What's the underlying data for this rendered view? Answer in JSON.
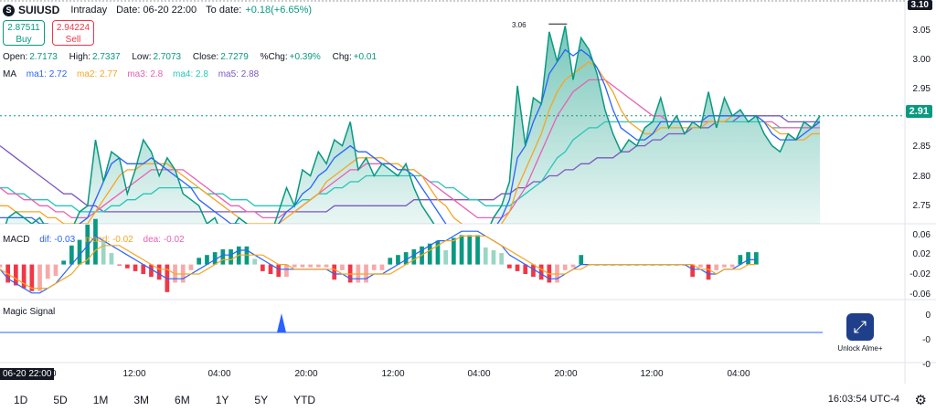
{
  "header": {
    "symbol": "SUIUSD",
    "interval": "Intraday",
    "date": "Date: 06-20 22:00",
    "to_date_label": "To date:",
    "to_date_value": "+0.18(+6.65%)"
  },
  "trade": {
    "buy_price": "2.87511",
    "buy_label": "Buy",
    "sell_price": "2.94224",
    "sell_label": "Sell"
  },
  "ohlc": {
    "open_label": "Open:",
    "open": "2.7173",
    "high_label": "High:",
    "high": "2.7337",
    "low_label": "Low:",
    "low": "2.7073",
    "close_label": "Close:",
    "close": "2.7279",
    "pchg_label": "%Chg:",
    "pchg": "+0.39%",
    "chg_label": "Chg:",
    "chg": "+0.01"
  },
  "ma_legend": {
    "title": "MA",
    "ma1": "ma1: 2.72",
    "ma2": "ma2: 2.77",
    "ma3": "ma3: 2.8",
    "ma4": "ma4: 2.8",
    "ma5": "ma5: 2.88"
  },
  "macd_legend": {
    "title": "MACD",
    "dif": "dif: -0.03",
    "macd": "macd: -0.02",
    "dea": "dea: -0.02"
  },
  "magic": {
    "title": "Magic Signal",
    "unlock_text": "Unlock Alme+"
  },
  "price_axis": {
    "labels": [
      "3.10",
      "3.05",
      "3.00",
      "2.95",
      "2.90",
      "2.85",
      "2.80",
      "2.75"
    ],
    "current": "2.91",
    "peak": "3.06"
  },
  "macd_axis": {
    "labels": [
      "0.06",
      "0.02",
      "-0.02",
      "-0.06"
    ]
  },
  "magic_axis": {
    "labels": [
      "0",
      "-0",
      "-0"
    ]
  },
  "time_axis": {
    "badge": "06-20 22:00",
    "labels": [
      "00",
      "12:00",
      "04:00",
      "20:00",
      "12:00",
      "04:00",
      "20:00",
      "12:00",
      "04:00"
    ]
  },
  "ranges": [
    "1D",
    "5D",
    "1M",
    "3M",
    "6M",
    "1Y",
    "5Y",
    "YTD"
  ],
  "clock": "16:03:54 UTC-4",
  "colors": {
    "up": "#089981",
    "down": "#f23645",
    "ma1": "#2962ff",
    "ma2": "#f5a623",
    "ma3": "#e860b5",
    "ma4": "#26c6b8",
    "ma5": "#7e57c2",
    "area": "#089981"
  },
  "chart_data": {
    "type": "line",
    "price": {
      "ylim": [
        2.73,
        3.1
      ],
      "close": [
        2.7,
        2.74,
        2.75,
        2.74,
        2.73,
        2.74,
        2.72,
        2.71,
        2.7,
        2.72,
        2.75,
        2.76,
        2.87,
        2.8,
        2.85,
        2.84,
        2.78,
        2.82,
        2.87,
        2.85,
        2.81,
        2.84,
        2.82,
        2.78,
        2.77,
        2.76,
        2.73,
        2.74,
        2.71,
        2.72,
        2.74,
        2.73,
        2.72,
        2.7,
        2.71,
        2.75,
        2.79,
        2.76,
        2.82,
        2.81,
        2.85,
        2.83,
        2.87,
        2.86,
        2.9,
        2.82,
        2.84,
        2.81,
        2.83,
        2.82,
        2.81,
        2.83,
        2.79,
        2.76,
        2.74,
        2.72,
        2.71,
        2.7,
        2.69,
        2.7,
        2.72,
        2.71,
        2.74,
        2.76,
        2.8,
        2.96,
        2.86,
        2.94,
        2.93,
        3.05,
        3.0,
        3.06,
        2.97,
        3.04,
        3.02,
        2.98,
        2.92,
        2.88,
        2.85,
        2.87,
        2.86,
        2.89,
        2.9,
        2.94,
        2.89,
        2.91,
        2.88,
        2.9,
        2.89,
        2.95,
        2.89,
        2.94,
        2.91,
        2.92,
        2.9,
        2.91,
        2.88,
        2.86,
        2.85,
        2.88,
        2.87,
        2.9,
        2.89,
        2.91
      ],
      "ma1": [
        2.74,
        2.74,
        2.74,
        2.74,
        2.74,
        2.73,
        2.73,
        2.72,
        2.72,
        2.72,
        2.73,
        2.74,
        2.77,
        2.8,
        2.83,
        2.84,
        2.83,
        2.83,
        2.83,
        2.84,
        2.83,
        2.82,
        2.81,
        2.8,
        2.79,
        2.77,
        2.76,
        2.75,
        2.74,
        2.73,
        2.73,
        2.72,
        2.72,
        2.72,
        2.72,
        2.73,
        2.75,
        2.76,
        2.78,
        2.79,
        2.81,
        2.82,
        2.84,
        2.85,
        2.86,
        2.85,
        2.85,
        2.84,
        2.83,
        2.83,
        2.82,
        2.82,
        2.81,
        2.79,
        2.77,
        2.75,
        2.73,
        2.72,
        2.71,
        2.7,
        2.71,
        2.71,
        2.72,
        2.74,
        2.77,
        2.84,
        2.86,
        2.9,
        2.93,
        2.98,
        3.0,
        3.02,
        3.01,
        3.02,
        3.01,
        2.99,
        2.96,
        2.92,
        2.89,
        2.88,
        2.87,
        2.87,
        2.88,
        2.9,
        2.9,
        2.9,
        2.9,
        2.9,
        2.9,
        2.91,
        2.91,
        2.91,
        2.91,
        2.91,
        2.91,
        2.91,
        2.9,
        2.88,
        2.87,
        2.87,
        2.87,
        2.88,
        2.89,
        2.9
      ],
      "ma2": [
        2.76,
        2.76,
        2.75,
        2.75,
        2.75,
        2.75,
        2.74,
        2.74,
        2.73,
        2.73,
        2.73,
        2.73,
        2.75,
        2.77,
        2.79,
        2.81,
        2.82,
        2.82,
        2.83,
        2.83,
        2.83,
        2.83,
        2.82,
        2.81,
        2.8,
        2.79,
        2.78,
        2.77,
        2.76,
        2.75,
        2.74,
        2.73,
        2.73,
        2.73,
        2.73,
        2.73,
        2.74,
        2.75,
        2.76,
        2.77,
        2.78,
        2.8,
        2.81,
        2.82,
        2.83,
        2.84,
        2.84,
        2.84,
        2.84,
        2.83,
        2.83,
        2.82,
        2.82,
        2.81,
        2.79,
        2.77,
        2.76,
        2.74,
        2.73,
        2.72,
        2.72,
        2.72,
        2.72,
        2.73,
        2.75,
        2.79,
        2.82,
        2.85,
        2.88,
        2.92,
        2.95,
        2.97,
        2.98,
        2.99,
        3.0,
        2.99,
        2.97,
        2.95,
        2.92,
        2.9,
        2.89,
        2.88,
        2.88,
        2.89,
        2.89,
        2.89,
        2.89,
        2.89,
        2.89,
        2.9,
        2.9,
        2.9,
        2.91,
        2.91,
        2.91,
        2.91,
        2.9,
        2.89,
        2.88,
        2.88,
        2.87,
        2.87,
        2.88,
        2.88
      ],
      "ma3": [
        2.79,
        2.78,
        2.78,
        2.77,
        2.77,
        2.76,
        2.76,
        2.75,
        2.75,
        2.74,
        2.74,
        2.74,
        2.75,
        2.76,
        2.77,
        2.78,
        2.79,
        2.8,
        2.81,
        2.82,
        2.82,
        2.82,
        2.82,
        2.82,
        2.81,
        2.8,
        2.79,
        2.78,
        2.77,
        2.76,
        2.76,
        2.75,
        2.75,
        2.74,
        2.74,
        2.74,
        2.75,
        2.75,
        2.76,
        2.77,
        2.78,
        2.79,
        2.8,
        2.81,
        2.82,
        2.82,
        2.83,
        2.83,
        2.83,
        2.83,
        2.82,
        2.82,
        2.82,
        2.81,
        2.8,
        2.79,
        2.78,
        2.77,
        2.76,
        2.75,
        2.74,
        2.74,
        2.74,
        2.74,
        2.75,
        2.77,
        2.79,
        2.82,
        2.85,
        2.88,
        2.91,
        2.93,
        2.95,
        2.96,
        2.97,
        2.97,
        2.97,
        2.96,
        2.95,
        2.94,
        2.93,
        2.92,
        2.91,
        2.91,
        2.9,
        2.9,
        2.9,
        2.9,
        2.9,
        2.9,
        2.9,
        2.9,
        2.91,
        2.91,
        2.91,
        2.91,
        2.9,
        2.9,
        2.89,
        2.89,
        2.89,
        2.89,
        2.89,
        2.89
      ],
      "ma4": [
        2.79,
        2.79,
        2.78,
        2.78,
        2.77,
        2.77,
        2.77,
        2.76,
        2.76,
        2.76,
        2.75,
        2.75,
        2.75,
        2.75,
        2.76,
        2.76,
        2.77,
        2.77,
        2.78,
        2.78,
        2.79,
        2.79,
        2.79,
        2.79,
        2.79,
        2.79,
        2.78,
        2.78,
        2.78,
        2.77,
        2.77,
        2.77,
        2.76,
        2.76,
        2.76,
        2.76,
        2.76,
        2.76,
        2.77,
        2.77,
        2.78,
        2.78,
        2.79,
        2.79,
        2.8,
        2.8,
        2.81,
        2.81,
        2.81,
        2.81,
        2.81,
        2.81,
        2.81,
        2.81,
        2.8,
        2.8,
        2.79,
        2.79,
        2.78,
        2.77,
        2.77,
        2.76,
        2.76,
        2.76,
        2.76,
        2.77,
        2.78,
        2.79,
        2.8,
        2.82,
        2.84,
        2.85,
        2.87,
        2.88,
        2.89,
        2.89,
        2.9,
        2.9,
        2.9,
        2.9,
        2.9,
        2.9,
        2.9,
        2.9,
        2.9,
        2.9,
        2.9,
        2.9,
        2.9,
        2.9,
        2.9,
        2.9,
        2.9,
        2.9,
        2.9,
        2.9,
        2.9,
        2.89,
        2.89,
        2.89,
        2.89,
        2.89,
        2.89,
        2.9
      ],
      "ma5": [
        2.86,
        2.85,
        2.84,
        2.83,
        2.82,
        2.81,
        2.8,
        2.79,
        2.78,
        2.78,
        2.77,
        2.76,
        2.76,
        2.75,
        2.75,
        2.75,
        2.75,
        2.75,
        2.75,
        2.75,
        2.75,
        2.75,
        2.75,
        2.75,
        2.75,
        2.75,
        2.75,
        2.75,
        2.75,
        2.75,
        2.75,
        2.75,
        2.75,
        2.75,
        2.75,
        2.75,
        2.75,
        2.75,
        2.75,
        2.75,
        2.75,
        2.75,
        2.76,
        2.76,
        2.76,
        2.76,
        2.76,
        2.76,
        2.76,
        2.76,
        2.76,
        2.76,
        2.77,
        2.77,
        2.77,
        2.77,
        2.77,
        2.77,
        2.77,
        2.77,
        2.77,
        2.77,
        2.77,
        2.78,
        2.78,
        2.79,
        2.79,
        2.8,
        2.8,
        2.81,
        2.81,
        2.82,
        2.82,
        2.83,
        2.83,
        2.84,
        2.84,
        2.84,
        2.85,
        2.85,
        2.86,
        2.86,
        2.87,
        2.87,
        2.88,
        2.88,
        2.88,
        2.89,
        2.89,
        2.89,
        2.9,
        2.9,
        2.9,
        2.91,
        2.91,
        2.91,
        2.91,
        2.91,
        2.91,
        2.9,
        2.9,
        2.9,
        2.9,
        2.9
      ]
    },
    "macd": {
      "ylim": [
        -0.07,
        0.08
      ],
      "dif": [
        -0.01,
        -0.03,
        -0.04,
        -0.05,
        -0.06,
        -0.06,
        -0.05,
        -0.04,
        -0.02,
        0.0,
        0.02,
        0.04,
        0.06,
        0.05,
        0.04,
        0.03,
        0.02,
        0.01,
        0.0,
        -0.01,
        -0.02,
        -0.03,
        -0.03,
        -0.03,
        -0.02,
        -0.01,
        0.0,
        0.01,
        0.02,
        0.02,
        0.03,
        0.03,
        0.02,
        0.01,
        0.0,
        -0.01,
        -0.01,
        -0.01,
        -0.01,
        -0.01,
        -0.01,
        -0.01,
        -0.02,
        -0.02,
        -0.03,
        -0.03,
        -0.03,
        -0.02,
        -0.02,
        -0.01,
        0.0,
        0.01,
        0.02,
        0.03,
        0.04,
        0.05,
        0.05,
        0.06,
        0.07,
        0.07,
        0.07,
        0.06,
        0.05,
        0.04,
        0.02,
        0.01,
        0.0,
        -0.01,
        -0.02,
        -0.03,
        -0.03,
        -0.02,
        -0.01,
        0.0,
        0.0,
        0.0,
        0.0,
        0.0,
        0.0,
        0.0,
        0.0,
        0.0,
        0.0,
        0.0,
        0.0,
        0.0,
        0.0,
        -0.01,
        -0.01,
        -0.02,
        -0.02,
        -0.01,
        -0.01,
        0.0,
        0.01,
        0.01
      ],
      "dea": [
        -0.01,
        -0.02,
        -0.03,
        -0.04,
        -0.05,
        -0.05,
        -0.05,
        -0.04,
        -0.03,
        -0.02,
        0.0,
        0.01,
        0.03,
        0.04,
        0.04,
        0.04,
        0.03,
        0.02,
        0.01,
        0.0,
        -0.01,
        -0.01,
        -0.02,
        -0.02,
        -0.02,
        -0.02,
        -0.01,
        0.0,
        0.01,
        0.01,
        0.02,
        0.02,
        0.02,
        0.02,
        0.01,
        0.0,
        0.0,
        -0.01,
        -0.01,
        -0.01,
        -0.01,
        -0.01,
        -0.01,
        -0.02,
        -0.02,
        -0.02,
        -0.02,
        -0.02,
        -0.02,
        -0.02,
        -0.01,
        0.0,
        0.01,
        0.02,
        0.03,
        0.04,
        0.05,
        0.05,
        0.06,
        0.06,
        0.06,
        0.06,
        0.05,
        0.04,
        0.03,
        0.02,
        0.01,
        0.0,
        -0.01,
        -0.02,
        -0.02,
        -0.02,
        -0.01,
        -0.01,
        0.0,
        0.0,
        0.0,
        0.0,
        0.0,
        0.0,
        0.0,
        0.0,
        0.0,
        0.0,
        0.0,
        0.0,
        0.0,
        0.0,
        -0.01,
        -0.01,
        -0.02,
        -0.01,
        -0.01,
        -0.01,
        0.0,
        0.0
      ]
    }
  }
}
